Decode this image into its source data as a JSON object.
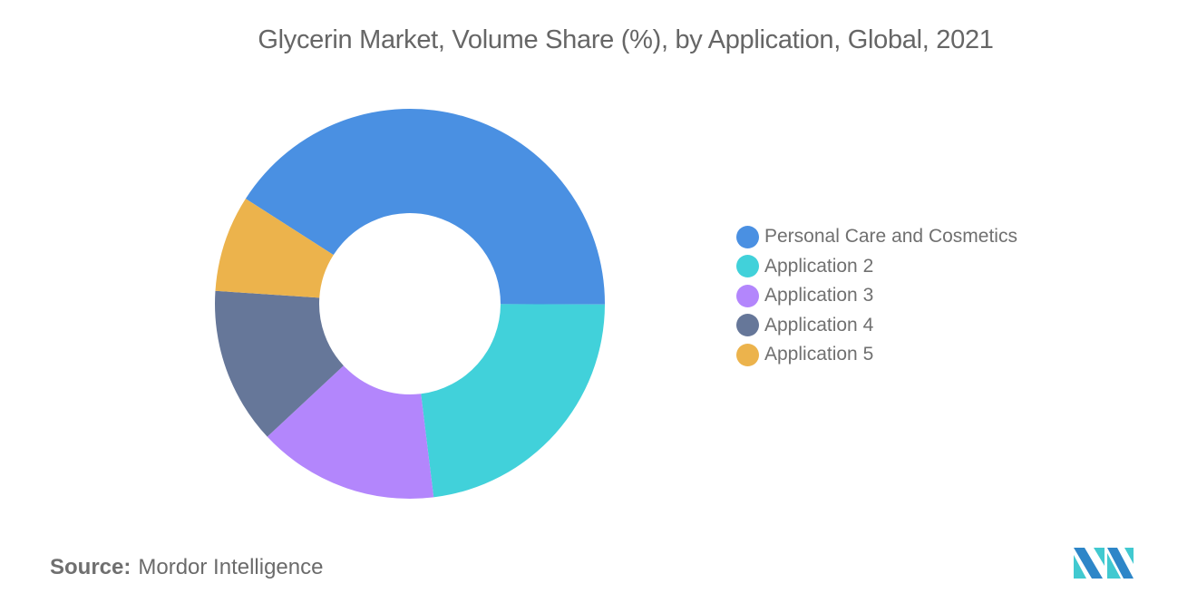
{
  "title": "Glycerin Market, Volume Share (%), by Application, Global, 2021",
  "source": {
    "label": "Source:",
    "value": "Mordor Intelligence"
  },
  "legend": [
    {
      "label": "Personal Care and Cosmetics",
      "color": "#4A90E2"
    },
    {
      "label": "Application 2",
      "color": "#41D1DA"
    },
    {
      "label": "Application 3",
      "color": "#B386FC"
    },
    {
      "label": "Application 4",
      "color": "#667799"
    },
    {
      "label": "Application 5",
      "color": "#ECB34C"
    }
  ],
  "chart_data": {
    "type": "pie",
    "subtype": "donut",
    "title": "Glycerin Market, Volume Share (%), by Application, Global, 2021",
    "categories": [
      "Personal Care and Cosmetics",
      "Application 2",
      "Application 3",
      "Application 4",
      "Application 5"
    ],
    "values": [
      41,
      23,
      15,
      13,
      8
    ],
    "colors": [
      "#4A90E2",
      "#41D1DA",
      "#B386FC",
      "#667799",
      "#ECB34C"
    ],
    "unit": "%",
    "data_labels": false,
    "legend_position": "right",
    "start_angle_deg": 212.6,
    "direction": "clockwise",
    "center": [
      452,
      335
    ],
    "outer_radius": 215,
    "inner_radius": 100
  }
}
